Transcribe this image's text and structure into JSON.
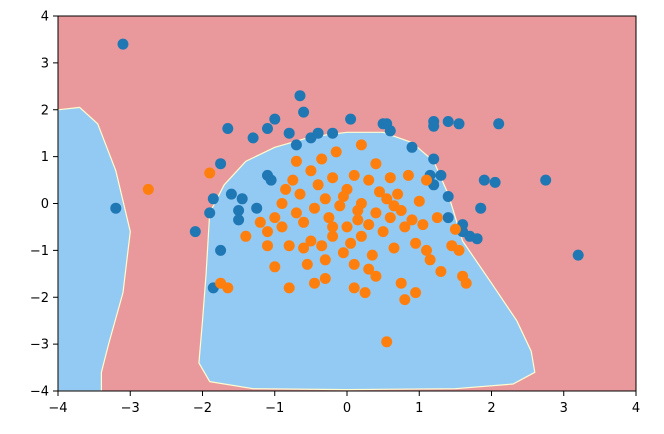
{
  "chart_data": {
    "type": "scatter",
    "title": "",
    "xlabel": "",
    "ylabel": "",
    "xlim": [
      -4,
      4
    ],
    "ylim": [
      -4,
      4
    ],
    "xticks": [
      "−4",
      "−3",
      "−2",
      "−1",
      "0",
      "1",
      "2",
      "3",
      "4"
    ],
    "yticks": [
      "4",
      "3",
      "2",
      "1",
      "0",
      "−1",
      "−2",
      "−3",
      "−4"
    ],
    "grid": false,
    "legend": "none",
    "colors": {
      "background_region": "#e9999b",
      "decision_region": "#93caf4",
      "class_0_points": "#1f77b4",
      "class_1_points": "#ff7f0e"
    },
    "decision_regions": [
      {
        "class": 0,
        "polygon": [
          [
            -4,
            2.0
          ],
          [
            -3.7,
            2.05
          ],
          [
            -3.45,
            1.7
          ],
          [
            -3.2,
            0.7
          ],
          [
            -3.0,
            -0.6
          ],
          [
            -3.1,
            -1.9
          ],
          [
            -3.3,
            -3.0
          ],
          [
            -3.4,
            -3.6
          ],
          [
            -3.4,
            -4.0
          ],
          [
            -4,
            -4.0
          ]
        ]
      },
      {
        "class": 0,
        "polygon": [
          [
            -1.9,
            -0.2
          ],
          [
            -1.7,
            0.4
          ],
          [
            -1.4,
            0.9
          ],
          [
            -1.0,
            1.2
          ],
          [
            -0.5,
            1.42
          ],
          [
            0,
            1.52
          ],
          [
            0.5,
            1.52
          ],
          [
            0.9,
            1.3
          ],
          [
            1.2,
            0.9
          ],
          [
            1.4,
            0.2
          ],
          [
            1.6,
            -0.8
          ],
          [
            2.0,
            -1.7
          ],
          [
            2.35,
            -2.5
          ],
          [
            2.55,
            -3.15
          ],
          [
            2.6,
            -3.6
          ],
          [
            2.3,
            -3.85
          ],
          [
            1.5,
            -3.95
          ],
          [
            0,
            -3.97
          ],
          [
            -1.3,
            -3.95
          ],
          [
            -1.9,
            -3.8
          ],
          [
            -2.05,
            -3.4
          ],
          [
            -2.0,
            -2.5
          ],
          [
            -1.95,
            -1.5
          ]
        ]
      }
    ],
    "series": [
      {
        "class": 0,
        "points": [
          [
            -3.1,
            3.4
          ],
          [
            -3.2,
            -0.1
          ],
          [
            -2.1,
            -0.6
          ],
          [
            -1.9,
            -0.2
          ],
          [
            -1.85,
            0.1
          ],
          [
            -1.75,
            0.85
          ],
          [
            -1.6,
            0.2
          ],
          [
            -1.65,
            1.6
          ],
          [
            -1.5,
            -0.15
          ],
          [
            -1.45,
            0.1
          ],
          [
            -1.5,
            -0.35
          ],
          [
            -1.3,
            1.4
          ],
          [
            -1.25,
            -0.1
          ],
          [
            -1.1,
            0.6
          ],
          [
            -1.1,
            1.6
          ],
          [
            -1.0,
            1.8
          ],
          [
            -1.05,
            0.5
          ],
          [
            -0.8,
            1.5
          ],
          [
            -0.7,
            1.25
          ],
          [
            -0.65,
            2.3
          ],
          [
            -0.6,
            1.95
          ],
          [
            -0.5,
            1.4
          ],
          [
            -0.4,
            1.5
          ],
          [
            -0.2,
            1.5
          ],
          [
            0.05,
            1.8
          ],
          [
            0.5,
            1.7
          ],
          [
            0.55,
            1.7
          ],
          [
            0.6,
            1.55
          ],
          [
            0.9,
            1.2
          ],
          [
            1.15,
            0.6
          ],
          [
            1.2,
            1.75
          ],
          [
            1.2,
            1.65
          ],
          [
            1.2,
            0.95
          ],
          [
            1.2,
            0.4
          ],
          [
            1.3,
            0.6
          ],
          [
            1.4,
            1.75
          ],
          [
            1.55,
            1.7
          ],
          [
            1.4,
            0.15
          ],
          [
            1.4,
            -0.3
          ],
          [
            1.6,
            -0.6
          ],
          [
            1.6,
            -0.45
          ],
          [
            1.7,
            -0.7
          ],
          [
            1.8,
            -0.75
          ],
          [
            1.85,
            -0.1
          ],
          [
            1.9,
            0.5
          ],
          [
            2.05,
            0.45
          ],
          [
            2.1,
            1.7
          ],
          [
            2.75,
            0.5
          ],
          [
            3.2,
            -1.1
          ],
          [
            -1.85,
            -1.8
          ],
          [
            -1.75,
            -1.0
          ]
        ],
        "points_note": ""
      },
      {
        "class": 1,
        "points": [
          [
            -2.75,
            0.3
          ],
          [
            -1.9,
            0.65
          ],
          [
            -1.75,
            -1.7
          ],
          [
            -1.65,
            -1.8
          ],
          [
            -1.4,
            -0.7
          ],
          [
            -1.2,
            -0.4
          ],
          [
            -1.1,
            -0.6
          ],
          [
            -1.0,
            -0.3
          ],
          [
            -1.0,
            -1.35
          ],
          [
            -0.9,
            -0.5
          ],
          [
            -0.85,
            0.3
          ],
          [
            -0.8,
            -0.9
          ],
          [
            -0.75,
            0.5
          ],
          [
            -0.7,
            -0.2
          ],
          [
            -0.7,
            0.9
          ],
          [
            -0.65,
            0.2
          ],
          [
            -0.6,
            -0.4
          ],
          [
            -0.55,
            -1.3
          ],
          [
            -0.5,
            0.7
          ],
          [
            -0.5,
            -0.8
          ],
          [
            -0.45,
            -0.1
          ],
          [
            -0.4,
            0.4
          ],
          [
            -0.35,
            0.95
          ],
          [
            -0.3,
            -1.6
          ],
          [
            -0.3,
            0.1
          ],
          [
            -0.25,
            -0.3
          ],
          [
            -0.2,
            -0.7
          ],
          [
            -0.2,
            0.55
          ],
          [
            -0.15,
            1.1
          ],
          [
            -0.1,
            -0.05
          ],
          [
            -0.05,
            -1.05
          ],
          [
            0.0,
            0.3
          ],
          [
            0.0,
            -0.5
          ],
          [
            0.05,
            -0.85
          ],
          [
            0.1,
            0.6
          ],
          [
            0.1,
            -1.3
          ],
          [
            0.15,
            -0.15
          ],
          [
            0.2,
            1.25
          ],
          [
            0.2,
            0.0
          ],
          [
            0.25,
            -1.9
          ],
          [
            0.3,
            -0.45
          ],
          [
            0.3,
            0.5
          ],
          [
            0.35,
            -1.1
          ],
          [
            0.4,
            0.85
          ],
          [
            0.4,
            -1.55
          ],
          [
            0.45,
            0.25
          ],
          [
            0.5,
            -0.6
          ],
          [
            0.55,
            0.1
          ],
          [
            0.6,
            -0.3
          ],
          [
            0.6,
            0.55
          ],
          [
            0.65,
            -0.95
          ],
          [
            0.7,
            0.2
          ],
          [
            0.75,
            -0.15
          ],
          [
            0.8,
            -0.5
          ],
          [
            0.85,
            0.6
          ],
          [
            0.9,
            -0.35
          ],
          [
            0.95,
            -0.85
          ],
          [
            1.0,
            0.05
          ],
          [
            1.05,
            -0.45
          ],
          [
            1.1,
            0.5
          ],
          [
            1.15,
            -1.2
          ],
          [
            1.25,
            -0.3
          ],
          [
            1.3,
            -1.45
          ],
          [
            1.45,
            -0.9
          ],
          [
            1.5,
            -0.55
          ],
          [
            1.55,
            -1.0
          ],
          [
            1.6,
            -1.55
          ],
          [
            1.65,
            -1.7
          ],
          [
            1.1,
            -1.0
          ],
          [
            0.75,
            -1.7
          ],
          [
            0.8,
            -2.05
          ],
          [
            0.95,
            -1.9
          ],
          [
            0.55,
            -2.95
          ],
          [
            -0.3,
            -1.2
          ],
          [
            -0.6,
            -0.95
          ],
          [
            -0.9,
            0.0
          ],
          [
            -1.1,
            -0.9
          ],
          [
            -0.2,
            -0.5
          ],
          [
            0.2,
            -0.7
          ],
          [
            0.4,
            -0.2
          ],
          [
            -0.05,
            0.15
          ],
          [
            0.15,
            -0.35
          ],
          [
            -0.35,
            -0.9
          ],
          [
            0.65,
            -0.05
          ],
          [
            -0.45,
            -1.7
          ],
          [
            0.1,
            -1.8
          ],
          [
            -0.8,
            -1.8
          ],
          [
            0.3,
            -1.4
          ]
        ]
      }
    ]
  }
}
